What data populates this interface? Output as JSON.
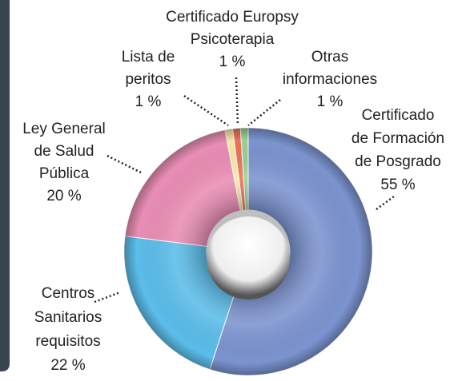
{
  "chart_data": {
    "type": "donut",
    "categories": [
      "Certificado\nde Formación\nde Posgrado",
      "Centros\nSanitarios\nrequisitos",
      "Ley General\nde Salud\nPública",
      "Lista de\nperitos",
      "Certificado Europsy\nPsicoterapia",
      "Otras\ninformaciones"
    ],
    "values": [
      55,
      22,
      20,
      1,
      1,
      1
    ],
    "value_labels": [
      "55 %",
      "22 %",
      "20 %",
      "1 %",
      "1 %",
      "1 %"
    ],
    "colors": [
      "#7b93cf",
      "#5bbde9",
      "#e98db4",
      "#f7e7a6",
      "#e9735a",
      "#9ccf8f"
    ]
  }
}
